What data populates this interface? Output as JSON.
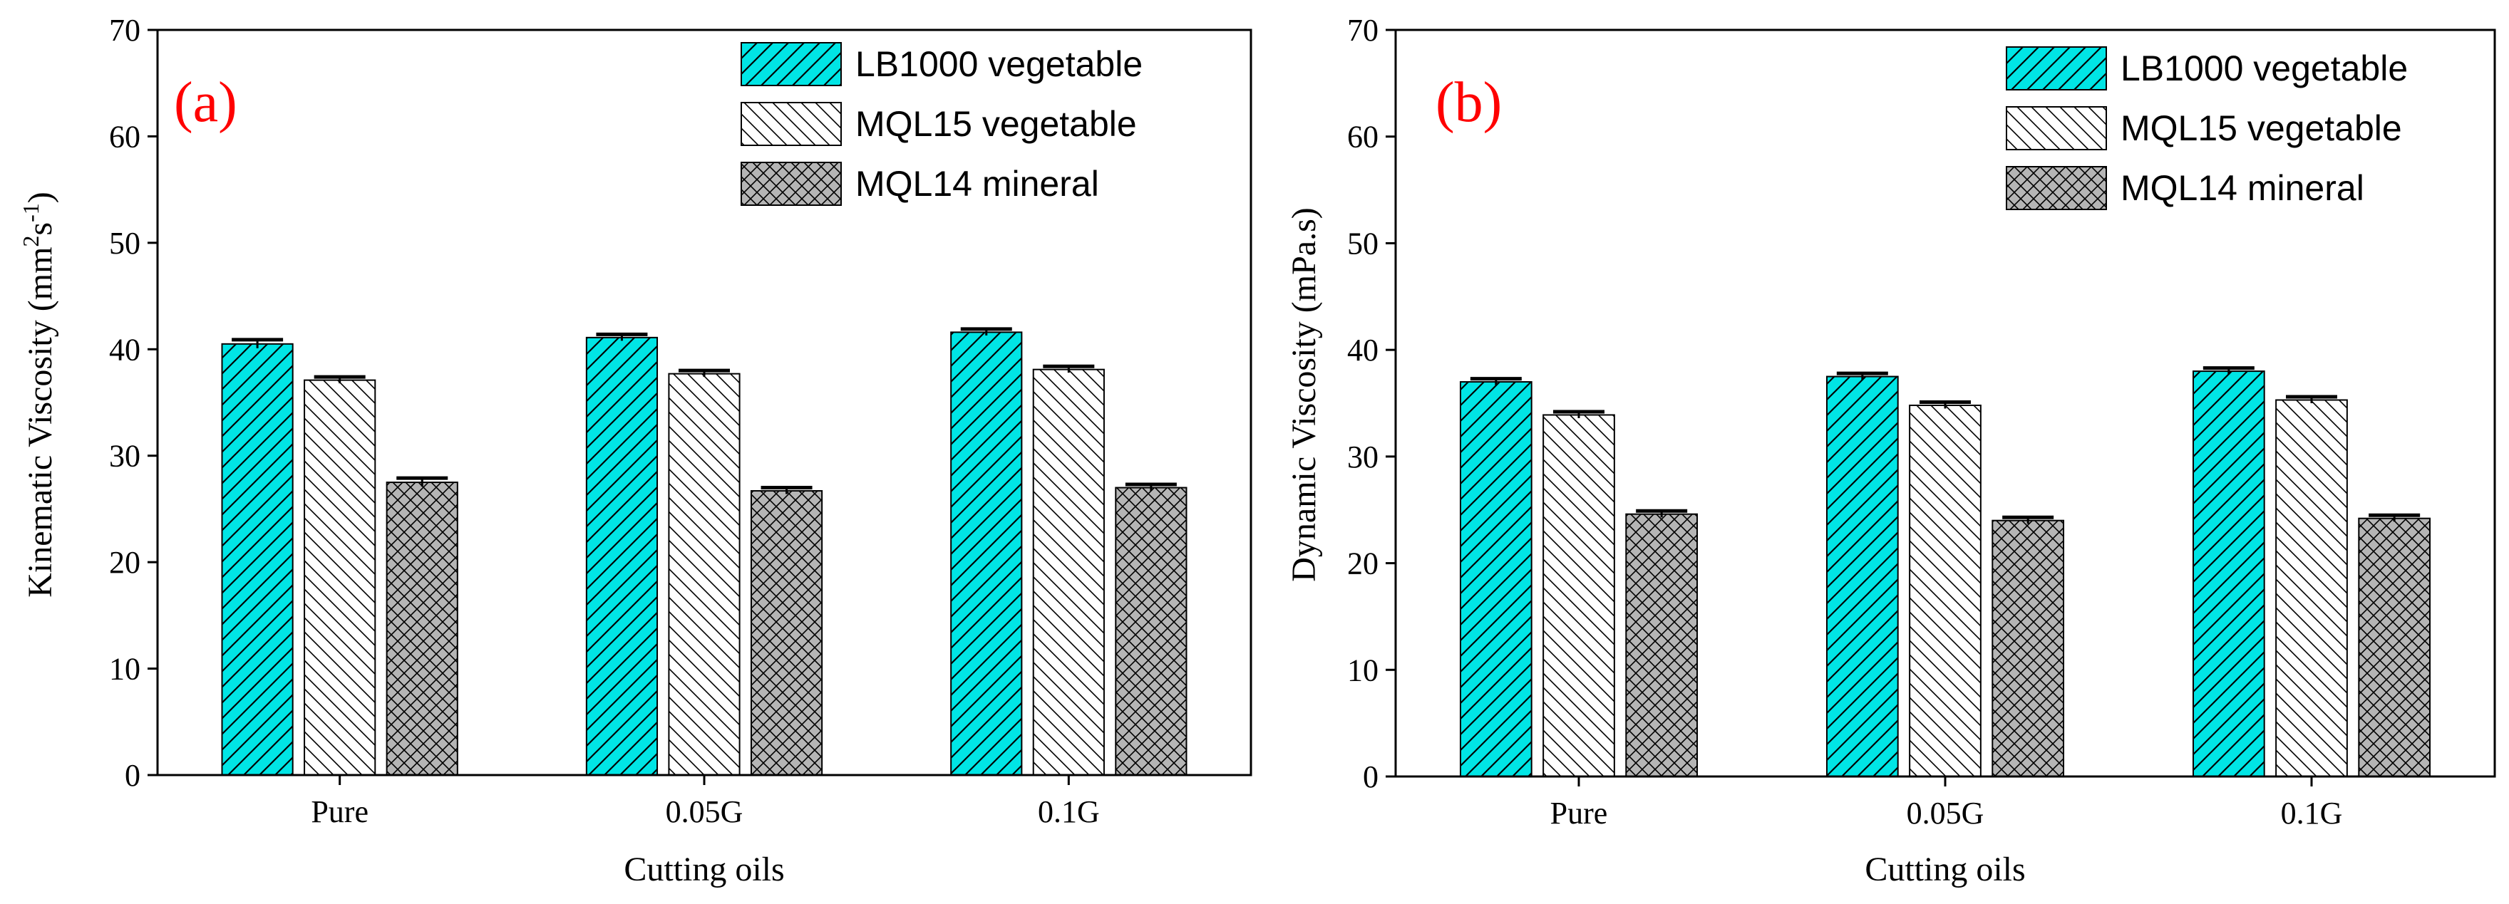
{
  "colors": {
    "cyan": "#00e5e5",
    "panel_letter": "#ff0000",
    "hatch_line": "#000000",
    "cross_bg": "#b5b5b5"
  },
  "legend": [
    {
      "name": "LB1000 vegetable",
      "pattern": "hatch-cyan"
    },
    {
      "name": "MQL15 vegetable",
      "pattern": "hatch-back"
    },
    {
      "name": "MQL14 mineral",
      "pattern": "hatch-cross"
    }
  ],
  "chart_data": [
    {
      "type": "bar",
      "panel": "(a)",
      "categories": [
        "Pure",
        "0.05G",
        "0.1G"
      ],
      "series": [
        {
          "name": "LB1000 vegetable",
          "values": [
            40.5,
            41.1,
            41.6
          ],
          "errors": [
            0.4,
            0.3,
            0.3
          ]
        },
        {
          "name": "MQL15 vegetable",
          "values": [
            37.1,
            37.7,
            38.1
          ],
          "errors": [
            0.3,
            0.3,
            0.3
          ]
        },
        {
          "name": "MQL14 mineral",
          "values": [
            27.5,
            26.7,
            27.0
          ],
          "errors": [
            0.4,
            0.3,
            0.3
          ]
        }
      ],
      "xlabel": "Cutting oils",
      "ylabel_main": "Kinematic Viscosity (mm",
      "ylabel_sup1": "2",
      "ylabel_mid": "s",
      "ylabel_sup2": "-1",
      "ylabel_end": ")",
      "ylim": [
        0,
        70
      ],
      "yticks": [
        0,
        10,
        20,
        30,
        40,
        50,
        60,
        70
      ]
    },
    {
      "type": "bar",
      "panel": "(b)",
      "categories": [
        "Pure",
        "0.05G",
        "0.1G"
      ],
      "series": [
        {
          "name": "LB1000 vegetable",
          "values": [
            37.0,
            37.5,
            38.0
          ],
          "errors": [
            0.3,
            0.3,
            0.3
          ]
        },
        {
          "name": "MQL15 vegetable",
          "values": [
            33.9,
            34.8,
            35.3
          ],
          "errors": [
            0.3,
            0.3,
            0.3
          ]
        },
        {
          "name": "MQL14 mineral",
          "values": [
            24.6,
            24.0,
            24.2
          ],
          "errors": [
            0.3,
            0.3,
            0.3
          ]
        }
      ],
      "xlabel": "Cutting oils",
      "ylabel": "Dynamic Viscosity (mPa.s)",
      "ylim": [
        0,
        70
      ],
      "yticks": [
        0,
        10,
        20,
        30,
        40,
        50,
        60,
        70
      ]
    }
  ]
}
